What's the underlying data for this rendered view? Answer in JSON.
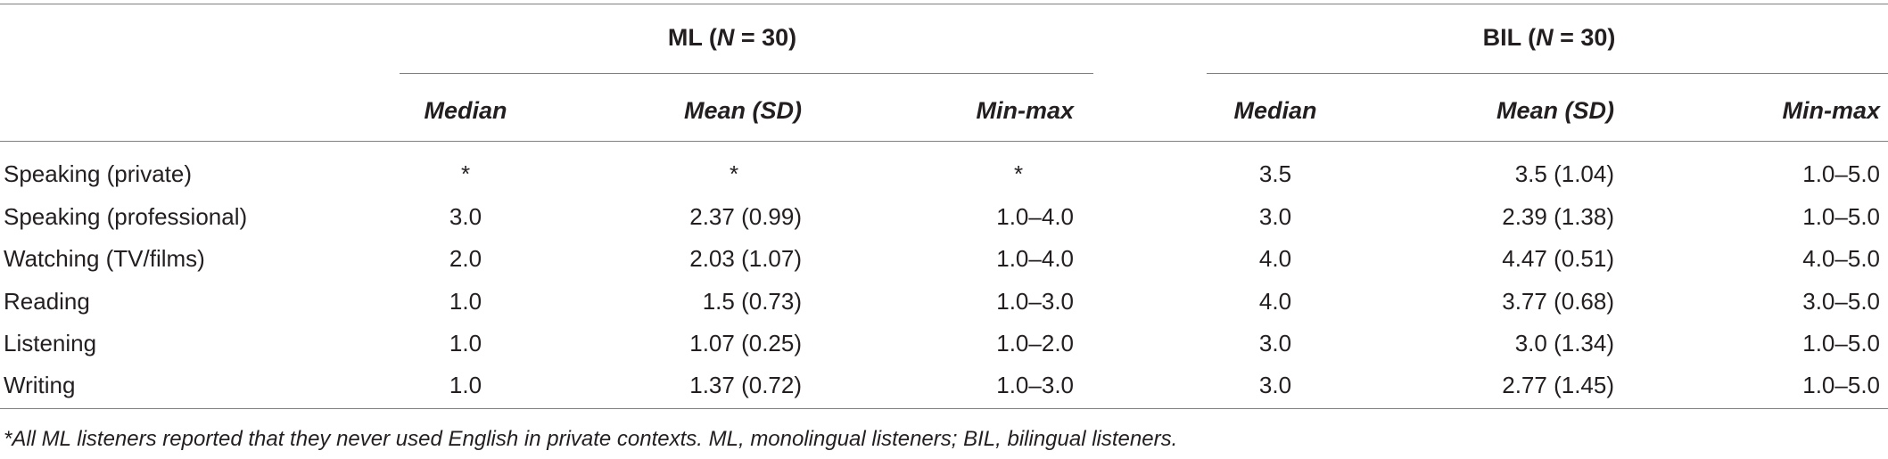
{
  "groups": {
    "ml": {
      "label": "ML (",
      "n_var": "N",
      "n_rest": " = 30)"
    },
    "bil": {
      "label": "BIL (",
      "n_var": "N",
      "n_rest": " = 30)"
    }
  },
  "subheaders": {
    "ml": [
      "Median",
      "Mean (SD)",
      "Min-max"
    ],
    "bil": [
      "Median",
      "Mean (SD)",
      "Min-max"
    ]
  },
  "rows": [
    {
      "label": "Speaking (private)",
      "ml": [
        "*",
        "*",
        "*"
      ],
      "bil": [
        "3.5",
        "3.5 (1.04)",
        "1.0–5.0"
      ]
    },
    {
      "label": "Speaking (professional)",
      "ml": [
        "3.0",
        "2.37 (0.99)",
        "1.0–4.0"
      ],
      "bil": [
        "3.0",
        "2.39 (1.38)",
        "1.0–5.0"
      ]
    },
    {
      "label": "Watching (TV/films)",
      "ml": [
        "2.0",
        "2.03 (1.07)",
        "1.0–4.0"
      ],
      "bil": [
        "4.0",
        "4.47 (0.51)",
        "4.0–5.0"
      ]
    },
    {
      "label": "Reading",
      "ml": [
        "1.0",
        "1.5 (0.73)",
        "1.0–3.0"
      ],
      "bil": [
        "4.0",
        "3.77 (0.68)",
        "3.0–5.0"
      ]
    },
    {
      "label": "Listening",
      "ml": [
        "1.0",
        "1.07 (0.25)",
        "1.0–2.0"
      ],
      "bil": [
        "3.0",
        "3.0 (1.34)",
        "1.0–5.0"
      ]
    },
    {
      "label": "Writing",
      "ml": [
        "1.0",
        "1.37 (0.72)",
        "1.0–3.0"
      ],
      "bil": [
        "3.0",
        "2.77 (1.45)",
        "1.0–5.0"
      ]
    }
  ],
  "footnote": "*All ML listeners reported that they never used English in private contexts. ML, monolingual listeners; BIL, bilingual listeners."
}
